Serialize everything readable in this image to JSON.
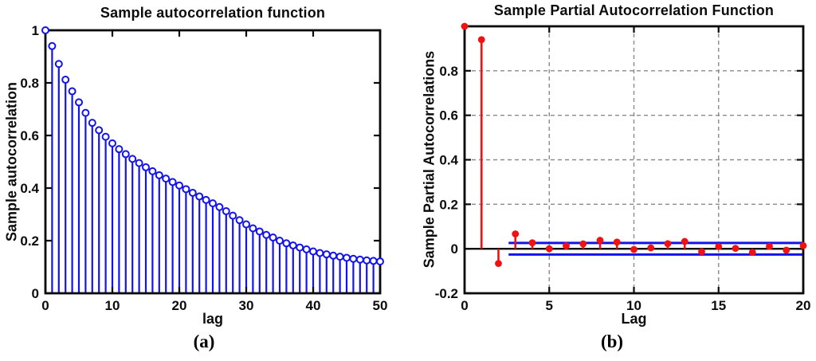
{
  "colors": {
    "blue": "#1414E8",
    "red": "#F01212",
    "frame": "#0a0a0a",
    "grid": "#8a8a8a",
    "zero_line": "#0a0a0a",
    "text": "#0c0c0c",
    "background": "#FFFFFF"
  },
  "panels": [
    {
      "caption": "(a)"
    },
    {
      "caption": "(b)"
    }
  ],
  "chart_data": [
    {
      "type": "stem",
      "title": "Sample autocorrelation function",
      "xlabel": "lag",
      "ylabel": "Sample autocorrelation",
      "xlim": [
        0,
        50
      ],
      "ylim": [
        0,
        1
      ],
      "xticks": [
        0,
        10,
        20,
        30,
        40,
        50
      ],
      "xtick_labels": [
        "0",
        "10",
        "20",
        "30",
        "40",
        "50"
      ],
      "yticks": [
        0,
        0.2,
        0.4,
        0.6,
        0.8,
        1
      ],
      "ytick_labels": [
        "0",
        "0.2",
        "0.4",
        "0.6",
        "0.8",
        "1"
      ],
      "grid": false,
      "marker": "open-circle",
      "series_color_key": "blue",
      "lags": [
        0,
        1,
        2,
        3,
        4,
        5,
        6,
        7,
        8,
        9,
        10,
        11,
        12,
        13,
        14,
        15,
        16,
        17,
        18,
        19,
        20,
        21,
        22,
        23,
        24,
        25,
        26,
        27,
        28,
        29,
        30,
        31,
        32,
        33,
        34,
        35,
        36,
        37,
        38,
        39,
        40,
        41,
        42,
        43,
        44,
        45,
        46,
        47,
        48,
        49,
        50
      ],
      "values": [
        1.0,
        0.94,
        0.872,
        0.812,
        0.768,
        0.726,
        0.686,
        0.648,
        0.62,
        0.595,
        0.57,
        0.548,
        0.529,
        0.511,
        0.495,
        0.479,
        0.464,
        0.449,
        0.436,
        0.423,
        0.41,
        0.396,
        0.382,
        0.368,
        0.355,
        0.342,
        0.328,
        0.312,
        0.295,
        0.278,
        0.262,
        0.247,
        0.235,
        0.222,
        0.212,
        0.2,
        0.19,
        0.182,
        0.174,
        0.167,
        0.159,
        0.153,
        0.148,
        0.143,
        0.139,
        0.135,
        0.131,
        0.128,
        0.125,
        0.123,
        0.121
      ]
    },
    {
      "type": "stem",
      "title": "Sample Partial Autocorrelation Function",
      "xlabel": "Lag",
      "ylabel": "Sample Partial Autocorrelations",
      "xlim": [
        0,
        20
      ],
      "ylim": [
        -0.2,
        1.0
      ],
      "xticks": [
        0,
        5,
        10,
        15,
        20
      ],
      "xtick_labels": [
        "0",
        "5",
        "10",
        "15",
        "20"
      ],
      "yticks": [
        -0.2,
        0,
        0.2,
        0.4,
        0.6,
        0.8
      ],
      "ytick_labels": [
        "-0.2",
        "0",
        "0.2",
        "0.4",
        "0.6",
        "0.8"
      ],
      "grid": true,
      "grid_x": [
        5,
        10,
        15
      ],
      "grid_y": [
        0.2,
        0.4,
        0.6,
        0.8
      ],
      "zero_line": true,
      "confidence_bounds": {
        "upper": 0.026,
        "lower": -0.026,
        "x_start": 2.6,
        "x_end": 20
      },
      "marker": "filled-circle",
      "series_color_key": "red",
      "lags": [
        0,
        1,
        2,
        3,
        4,
        5,
        6,
        7,
        8,
        9,
        10,
        11,
        12,
        13,
        14,
        15,
        16,
        17,
        18,
        19,
        20
      ],
      "values": [
        1.0,
        0.94,
        -0.066,
        0.067,
        0.027,
        0.0,
        0.013,
        0.022,
        0.038,
        0.03,
        -0.003,
        0.004,
        0.023,
        0.033,
        -0.013,
        0.01,
        0.002,
        -0.016,
        0.011,
        -0.006,
        0.014
      ]
    }
  ]
}
